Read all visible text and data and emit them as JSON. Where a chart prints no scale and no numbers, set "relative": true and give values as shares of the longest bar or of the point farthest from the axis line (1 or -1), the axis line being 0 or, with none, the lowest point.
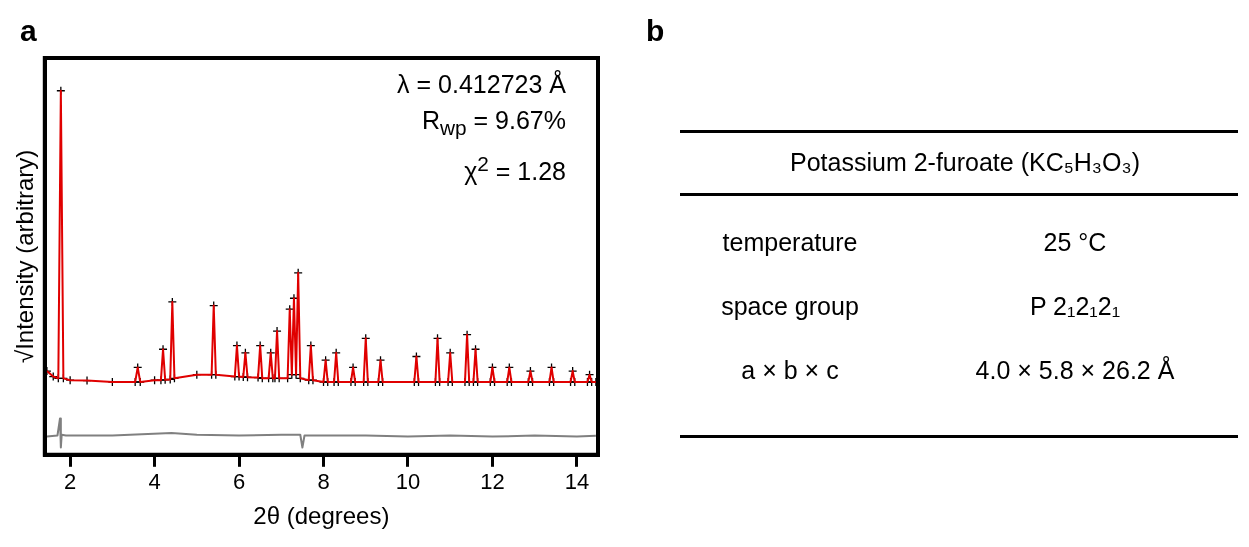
{
  "chart_data": [
    {
      "type": "line",
      "title": "a",
      "xlabel": "2θ (degrees)",
      "ylabel": "√Intensity (arbitrary)",
      "relative": true,
      "xlim": [
        1.4,
        14.5
      ],
      "xticks": [
        2,
        4,
        6,
        8,
        10,
        12,
        14
      ],
      "grid": false,
      "legend": false,
      "annotations": [
        "λ = 0.412723 Å",
        "R$_{wp}$ = 9.67%",
        "χ$^{2}$ = 1.28"
      ],
      "x": [
        1.45,
        1.6,
        1.72,
        1.78,
        1.84,
        2.0,
        2.4,
        3.0,
        3.54,
        3.6,
        3.66,
        4.0,
        4.15,
        4.2,
        4.25,
        4.37,
        4.42,
        4.47,
        5.0,
        5.35,
        5.4,
        5.45,
        5.9,
        5.95,
        6.0,
        6.1,
        6.15,
        6.2,
        6.45,
        6.5,
        6.55,
        6.7,
        6.75,
        6.8,
        6.85,
        6.9,
        6.95,
        7.15,
        7.2,
        7.25,
        7.3,
        7.35,
        7.4,
        7.45,
        7.65,
        7.7,
        7.75,
        8.0,
        8.05,
        8.1,
        8.25,
        8.3,
        8.35,
        8.65,
        8.7,
        8.75,
        8.95,
        9.0,
        9.05,
        9.3,
        9.35,
        9.4,
        10.15,
        10.2,
        10.25,
        10.65,
        10.7,
        10.75,
        10.95,
        11.0,
        11.05,
        11.35,
        11.4,
        11.45,
        11.55,
        11.6,
        11.65,
        11.95,
        12.0,
        12.05,
        12.35,
        12.4,
        12.45,
        12.85,
        12.9,
        12.95,
        13.35,
        13.4,
        13.45,
        13.85,
        13.9,
        13.95,
        14.25,
        14.3,
        14.35,
        14.45
      ],
      "series": [
        {
          "type": "scatter",
          "marker": "cross",
          "color": "#000000",
          "values": [
            0.23,
            0.215,
            0.21,
            1.0,
            0.21,
            0.205,
            0.204,
            0.2,
            0.2,
            0.24,
            0.2,
            0.205,
            0.205,
            0.29,
            0.206,
            0.207,
            0.42,
            0.21,
            0.22,
            0.22,
            0.41,
            0.22,
            0.215,
            0.3,
            0.215,
            0.214,
            0.28,
            0.213,
            0.212,
            0.3,
            0.21,
            0.21,
            0.28,
            0.21,
            0.21,
            0.34,
            0.21,
            0.21,
            0.4,
            0.22,
            0.43,
            0.22,
            0.5,
            0.21,
            0.205,
            0.3,
            0.205,
            0.2,
            0.26,
            0.2,
            0.2,
            0.28,
            0.2,
            0.2,
            0.24,
            0.2,
            0.2,
            0.32,
            0.2,
            0.2,
            0.26,
            0.2,
            0.2,
            0.27,
            0.2,
            0.2,
            0.32,
            0.2,
            0.2,
            0.28,
            0.2,
            0.2,
            0.33,
            0.2,
            0.2,
            0.29,
            0.2,
            0.2,
            0.24,
            0.2,
            0.2,
            0.24,
            0.2,
            0.2,
            0.23,
            0.2,
            0.2,
            0.24,
            0.2,
            0.2,
            0.23,
            0.2,
            0.2,
            0.22,
            0.2,
            0.2
          ]
        },
        {
          "type": "line",
          "marker": "none",
          "color": "#e00000",
          "values": [
            0.23,
            0.215,
            0.21,
            1.0,
            0.21,
            0.205,
            0.204,
            0.2,
            0.2,
            0.24,
            0.2,
            0.205,
            0.205,
            0.29,
            0.206,
            0.207,
            0.42,
            0.21,
            0.22,
            0.22,
            0.41,
            0.22,
            0.215,
            0.3,
            0.215,
            0.214,
            0.28,
            0.213,
            0.212,
            0.3,
            0.21,
            0.21,
            0.28,
            0.21,
            0.21,
            0.34,
            0.21,
            0.21,
            0.4,
            0.22,
            0.43,
            0.22,
            0.5,
            0.21,
            0.205,
            0.3,
            0.205,
            0.2,
            0.26,
            0.2,
            0.2,
            0.28,
            0.2,
            0.2,
            0.24,
            0.2,
            0.2,
            0.32,
            0.2,
            0.2,
            0.26,
            0.2,
            0.2,
            0.27,
            0.2,
            0.2,
            0.32,
            0.2,
            0.2,
            0.28,
            0.2,
            0.2,
            0.33,
            0.2,
            0.2,
            0.29,
            0.2,
            0.2,
            0.24,
            0.2,
            0.2,
            0.24,
            0.2,
            0.2,
            0.23,
            0.2,
            0.2,
            0.24,
            0.2,
            0.2,
            0.23,
            0.2,
            0.2,
            0.22,
            0.2,
            0.2
          ]
        },
        {
          "type": "line",
          "marker": "none",
          "color": "#808080",
          "x": [
            1.45,
            1.7,
            1.76,
            1.78,
            1.8,
            1.9,
            3,
            4.4,
            5,
            6,
            7,
            7.45,
            7.5,
            7.55,
            8,
            9,
            10,
            11,
            12,
            13,
            14,
            14.45
          ],
          "values": [
            0.05,
            0.053,
            0.1,
            0.02,
            0.055,
            0.053,
            0.053,
            0.06,
            0.055,
            0.053,
            0.055,
            0.055,
            0.02,
            0.053,
            0.053,
            0.053,
            0.05,
            0.053,
            0.05,
            0.053,
            0.05,
            0.052
          ]
        }
      ]
    },
    {
      "type": "other",
      "title": "b",
      "subtitle": "Potassium 2-furoate (KC₅H₃O₃)",
      "annotations": [
        "temperature",
        "25 °C",
        "space group",
        "P 2₁2₁2₁",
        "a × b × c",
        "4.0 × 5.8 × 26.2 Å"
      ]
    }
  ]
}
